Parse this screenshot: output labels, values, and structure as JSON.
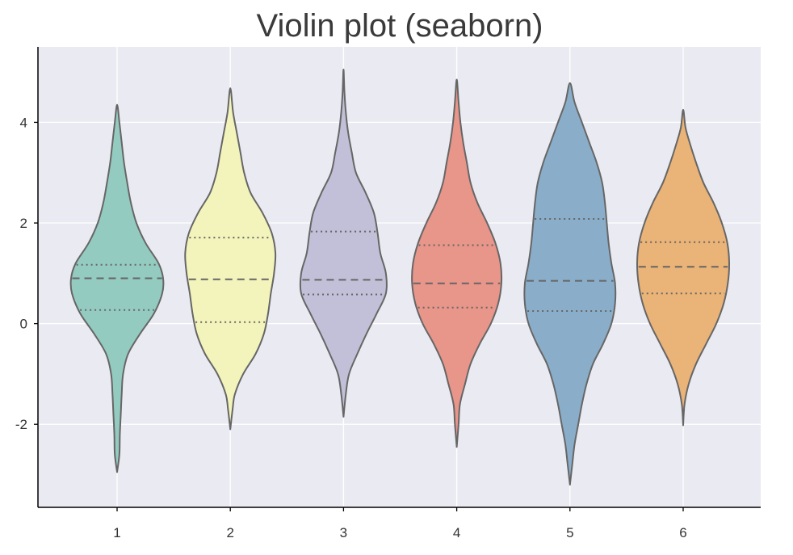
{
  "chart_data": {
    "type": "violin",
    "title": "Violin plot (seaborn)",
    "xlabel": "",
    "ylabel": "",
    "categories": [
      "1",
      "2",
      "3",
      "4",
      "5",
      "6"
    ],
    "yticks": [
      -2,
      0,
      2,
      4
    ],
    "ytick_labels": [
      "-2",
      "0",
      "2",
      "4"
    ],
    "ylim": [
      -3.65,
      5.5
    ],
    "grid": true,
    "colors": [
      "#94cbc1",
      "#f3f4bb",
      "#c1c0d8",
      "#e8958a",
      "#8aaec9",
      "#eab377"
    ],
    "background": "#eaeaf2",
    "line_color": "#666666",
    "series": [
      {
        "category": "1",
        "q1": 0.27,
        "median": 0.9,
        "q3": 1.17,
        "min": -2.95,
        "max": 4.35,
        "density": [
          [
            -2.95,
            0.0
          ],
          [
            -2.6,
            0.05
          ],
          [
            -2.2,
            0.06
          ],
          [
            -1.8,
            0.08
          ],
          [
            -1.4,
            0.1
          ],
          [
            -1.0,
            0.13
          ],
          [
            -0.6,
            0.24
          ],
          [
            -0.2,
            0.5
          ],
          [
            0.2,
            0.8
          ],
          [
            0.6,
            0.98
          ],
          [
            0.9,
            1.0
          ],
          [
            1.2,
            0.9
          ],
          [
            1.6,
            0.62
          ],
          [
            2.0,
            0.42
          ],
          [
            2.4,
            0.3
          ],
          [
            2.8,
            0.22
          ],
          [
            3.2,
            0.15
          ],
          [
            3.6,
            0.1
          ],
          [
            4.0,
            0.05
          ],
          [
            4.35,
            0.0
          ]
        ]
      },
      {
        "category": "2",
        "q1": 0.03,
        "median": 0.88,
        "q3": 1.71,
        "min": -2.1,
        "max": 4.68,
        "density": [
          [
            -2.1,
            0.0
          ],
          [
            -1.7,
            0.05
          ],
          [
            -1.4,
            0.1
          ],
          [
            -1.0,
            0.28
          ],
          [
            -0.6,
            0.55
          ],
          [
            -0.2,
            0.73
          ],
          [
            0.2,
            0.82
          ],
          [
            0.6,
            0.88
          ],
          [
            1.0,
            0.95
          ],
          [
            1.4,
            0.98
          ],
          [
            1.8,
            0.9
          ],
          [
            2.2,
            0.7
          ],
          [
            2.6,
            0.44
          ],
          [
            3.0,
            0.3
          ],
          [
            3.4,
            0.22
          ],
          [
            3.8,
            0.14
          ],
          [
            4.2,
            0.06
          ],
          [
            4.68,
            0.0
          ]
        ]
      },
      {
        "category": "3",
        "q1": 0.58,
        "median": 0.87,
        "q3": 1.83,
        "min": -1.85,
        "max": 5.05,
        "density": [
          [
            -1.85,
            0.0
          ],
          [
            -1.4,
            0.05
          ],
          [
            -1.0,
            0.12
          ],
          [
            -0.6,
            0.3
          ],
          [
            -0.2,
            0.5
          ],
          [
            0.2,
            0.72
          ],
          [
            0.6,
            0.92
          ],
          [
            1.0,
            0.92
          ],
          [
            1.4,
            0.8
          ],
          [
            1.8,
            0.74
          ],
          [
            2.2,
            0.66
          ],
          [
            2.6,
            0.48
          ],
          [
            3.0,
            0.27
          ],
          [
            3.4,
            0.18
          ],
          [
            3.8,
            0.1
          ],
          [
            4.2,
            0.05
          ],
          [
            4.6,
            0.02
          ],
          [
            5.05,
            0.0
          ]
        ]
      },
      {
        "category": "4",
        "q1": 0.32,
        "median": 0.8,
        "q3": 1.56,
        "min": -2.45,
        "max": 4.85,
        "density": [
          [
            -2.45,
            0.0
          ],
          [
            -2.0,
            0.04
          ],
          [
            -1.6,
            0.07
          ],
          [
            -1.2,
            0.18
          ],
          [
            -0.8,
            0.3
          ],
          [
            -0.4,
            0.5
          ],
          [
            0.0,
            0.74
          ],
          [
            0.4,
            0.9
          ],
          [
            0.8,
            0.97
          ],
          [
            1.2,
            0.95
          ],
          [
            1.6,
            0.84
          ],
          [
            2.0,
            0.66
          ],
          [
            2.4,
            0.45
          ],
          [
            2.8,
            0.3
          ],
          [
            3.2,
            0.22
          ],
          [
            3.6,
            0.14
          ],
          [
            4.0,
            0.08
          ],
          [
            4.4,
            0.04
          ],
          [
            4.85,
            0.0
          ]
        ]
      },
      {
        "category": "5",
        "q1": 0.25,
        "median": 0.85,
        "q3": 2.08,
        "min": -3.2,
        "max": 4.78,
        "density": [
          [
            -3.2,
            0.0
          ],
          [
            -2.8,
            0.05
          ],
          [
            -2.4,
            0.1
          ],
          [
            -2.0,
            0.18
          ],
          [
            -1.6,
            0.26
          ],
          [
            -1.2,
            0.36
          ],
          [
            -0.8,
            0.5
          ],
          [
            -0.4,
            0.72
          ],
          [
            0.0,
            0.9
          ],
          [
            0.4,
            0.98
          ],
          [
            0.8,
            0.98
          ],
          [
            1.2,
            0.9
          ],
          [
            1.6,
            0.84
          ],
          [
            2.0,
            0.8
          ],
          [
            2.4,
            0.76
          ],
          [
            2.8,
            0.7
          ],
          [
            3.2,
            0.58
          ],
          [
            3.6,
            0.42
          ],
          [
            4.0,
            0.26
          ],
          [
            4.4,
            0.1
          ],
          [
            4.78,
            0.0
          ]
        ]
      },
      {
        "category": "6",
        "q1": 0.6,
        "median": 1.13,
        "q3": 1.62,
        "min": -2.02,
        "max": 4.25,
        "density": [
          [
            -2.02,
            0.0
          ],
          [
            -1.6,
            0.03
          ],
          [
            -1.2,
            0.12
          ],
          [
            -0.8,
            0.28
          ],
          [
            -0.4,
            0.5
          ],
          [
            0.0,
            0.72
          ],
          [
            0.4,
            0.88
          ],
          [
            0.8,
            0.97
          ],
          [
            1.2,
            1.0
          ],
          [
            1.6,
            0.96
          ],
          [
            2.0,
            0.84
          ],
          [
            2.4,
            0.66
          ],
          [
            2.8,
            0.44
          ],
          [
            3.2,
            0.28
          ],
          [
            3.6,
            0.14
          ],
          [
            3.9,
            0.05
          ],
          [
            4.25,
            0.0
          ]
        ]
      }
    ]
  }
}
